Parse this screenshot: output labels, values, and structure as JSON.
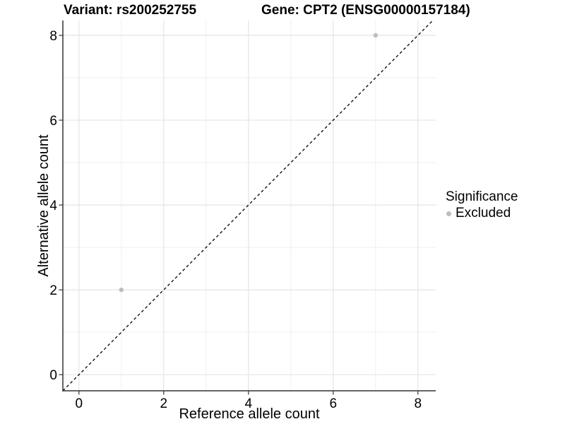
{
  "chart_data": {
    "type": "scatter",
    "title_left": "Variant: rs200252755",
    "title_right": "Gene: CPT2 (ENSG00000157184)",
    "xlabel": "Reference allele count",
    "ylabel": "Alternative allele count",
    "xlim": [
      -0.38,
      8.42
    ],
    "ylim": [
      -0.38,
      8.35
    ],
    "x_ticks": [
      0,
      2,
      4,
      6,
      8
    ],
    "y_ticks": [
      0,
      2,
      4,
      6,
      8
    ],
    "x_minor_ticks": [
      1,
      3,
      5,
      7
    ],
    "y_minor_ticks": [
      1,
      3,
      5,
      7
    ],
    "grid": true,
    "series": [
      {
        "name": "Excluded",
        "color": "#bdbdbd",
        "marker": "circle",
        "points": [
          [
            1,
            2
          ],
          [
            7,
            8
          ]
        ]
      }
    ],
    "identity_line": {
      "style": "dashed",
      "slope": 1,
      "intercept": 0,
      "color": "#000000"
    },
    "legend": {
      "title": "Significance",
      "position": "right",
      "entries": [
        {
          "label": "Excluded",
          "color": "#bdbdbd",
          "marker": "circle"
        }
      ]
    },
    "colors": {
      "background": "#ffffff",
      "grid_major": "#e4e4e4",
      "grid_minor": "#efefef",
      "axis": "#333333",
      "tick_text": "#000000",
      "identity_line": "#000000"
    }
  }
}
